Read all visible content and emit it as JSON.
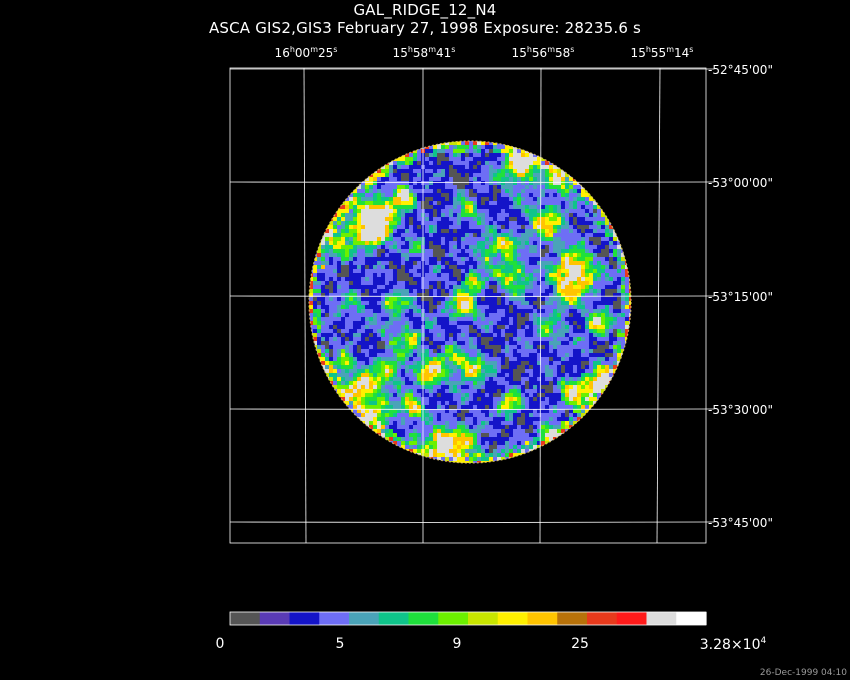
{
  "header": {
    "object": "GAL_RIDGE_12_N4",
    "subtitle": "ASCA GIS2,GIS3 February 27, 1998 Exposure: 28235.6 s"
  },
  "ra_labels": [
    {
      "h": "16",
      "m": "00",
      "s": "25"
    },
    {
      "h": "15",
      "m": "58",
      "s": "41"
    },
    {
      "h": "15",
      "m": "56",
      "s": "58"
    },
    {
      "h": "15",
      "m": "55",
      "s": "14"
    }
  ],
  "ra_units": {
    "h": "h",
    "m": "m",
    "s": "s"
  },
  "dec_labels": [
    "-52°45'00\"",
    "-53°00'00\"",
    "-53°15'00\"",
    "-53°30'00\"",
    "-53°45'00\""
  ],
  "colorbar": {
    "colors": [
      "#555555",
      "#5a3bb5",
      "#1414c8",
      "#6e6ef5",
      "#4aa3b8",
      "#0fc48a",
      "#1fe03c",
      "#6cf000",
      "#c8e600",
      "#fff000",
      "#ffc400",
      "#b8720a",
      "#e83a1c",
      "#ff1a1a",
      "#dddddd",
      "#ffffff"
    ],
    "labels": {
      "min": "0",
      "l1": "5",
      "l2": "9",
      "l3": "25",
      "max_base": "3.28×10",
      "max_exp": "4"
    }
  },
  "image_colors": {
    "grid": "#ffffff",
    "background": "#000000"
  },
  "timestamp": "26-Dec-1999 04:10"
}
